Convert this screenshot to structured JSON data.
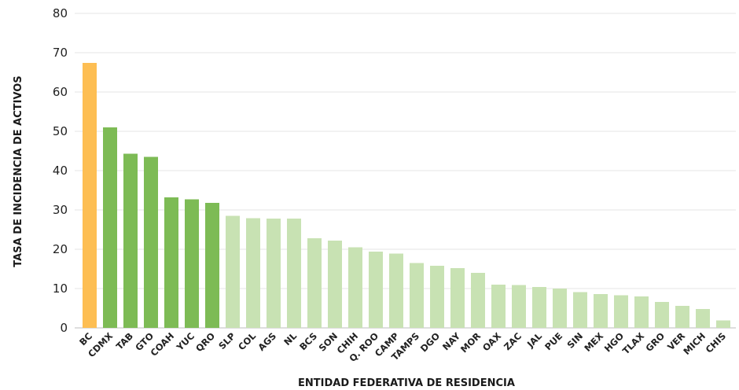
{
  "chart_data": {
    "type": "bar",
    "title": "",
    "xlabel": "ENTIDAD FEDERATIVA DE RESIDENCIA",
    "ylabel": "TASA DE INCIDENCIA DE ACTIVOS",
    "ylim": [
      0,
      80
    ],
    "yticks": [
      0,
      10,
      20,
      30,
      40,
      50,
      60,
      70,
      80
    ],
    "grid": true,
    "categories": [
      "BC",
      "CDMX",
      "TAB",
      "GTO",
      "COAH",
      "YUC",
      "QRO",
      "SLP",
      "COL",
      "AGS",
      "NL",
      "BCS",
      "SON",
      "CHIH",
      "Q. ROO",
      "CAMP",
      "TAMPS",
      "DGO",
      "NAY",
      "MOR",
      "OAX",
      "ZAC",
      "JAL",
      "PUE",
      "SIN",
      "MEX",
      "HGO",
      "TLAX",
      "GRO",
      "VER",
      "MICH",
      "CHIS"
    ],
    "values": [
      67.4,
      51.0,
      44.3,
      43.5,
      33.2,
      32.7,
      31.8,
      28.5,
      27.9,
      27.8,
      27.8,
      22.8,
      22.2,
      20.5,
      19.4,
      18.9,
      16.5,
      15.8,
      15.2,
      14.0,
      11.0,
      10.9,
      10.4,
      10.0,
      9.1,
      8.6,
      8.3,
      8.0,
      6.6,
      5.6,
      4.8,
      1.9
    ],
    "colors": {
      "highest": "#FDBE53",
      "high": "#7DBB55",
      "low": "#C8E2B3"
    },
    "color_groups": [
      "highest",
      "high",
      "high",
      "high",
      "high",
      "high",
      "high",
      "low",
      "low",
      "low",
      "low",
      "low",
      "low",
      "low",
      "low",
      "low",
      "low",
      "low",
      "low",
      "low",
      "low",
      "low",
      "low",
      "low",
      "low",
      "low",
      "low",
      "low",
      "low",
      "low",
      "low",
      "low"
    ]
  }
}
